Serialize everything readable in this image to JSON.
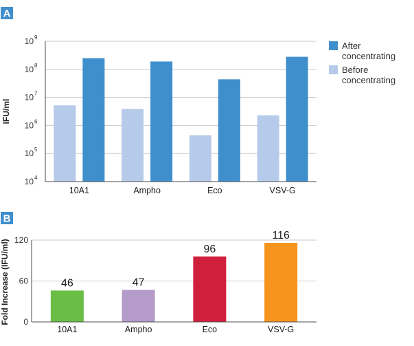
{
  "chart_data": [
    {
      "panel": "A",
      "type": "bar",
      "scale": "log",
      "categories": [
        "10A1",
        "Ampho",
        "Eco",
        "VSV-G"
      ],
      "series": [
        {
          "name": "Before concentrating",
          "color": "#b6cbe9",
          "values": [
            5200000,
            3900000,
            450000,
            2300000
          ]
        },
        {
          "name": "After concentrating",
          "color": "#3f8fcd",
          "values": [
            250000000,
            190000000,
            44000000,
            280000000
          ]
        }
      ],
      "legend": [
        {
          "lines": [
            "After",
            "concentrating"
          ],
          "color": "#3f8fcd"
        },
        {
          "lines": [
            "Before",
            "concentrating"
          ],
          "color": "#b6cbe9"
        }
      ],
      "ylabel": "IFU/ml",
      "ylim": [
        10000,
        1000000000
      ],
      "yticks": [
        {
          "base": "10",
          "exp": "4"
        },
        {
          "base": "10",
          "exp": "5"
        },
        {
          "base": "10",
          "exp": "6"
        },
        {
          "base": "10",
          "exp": "7"
        },
        {
          "base": "10",
          "exp": "8"
        },
        {
          "base": "10",
          "exp": "9"
        }
      ],
      "grid": true
    },
    {
      "panel": "B",
      "type": "bar",
      "categories": [
        "10A1",
        "Ampho",
        "Eco",
        "VSV-G"
      ],
      "values": [
        46,
        47,
        96,
        116
      ],
      "data_labels": [
        "46",
        "47",
        "96",
        "116"
      ],
      "colors": [
        "#6abd45",
        "#b59bc9",
        "#d01f3c",
        "#f7941d"
      ],
      "ylabel": "Fold Increase (IFU/ml)",
      "ylim": [
        0,
        120
      ],
      "yticks": [
        "0",
        "60",
        "120"
      ],
      "grid": true
    }
  ]
}
